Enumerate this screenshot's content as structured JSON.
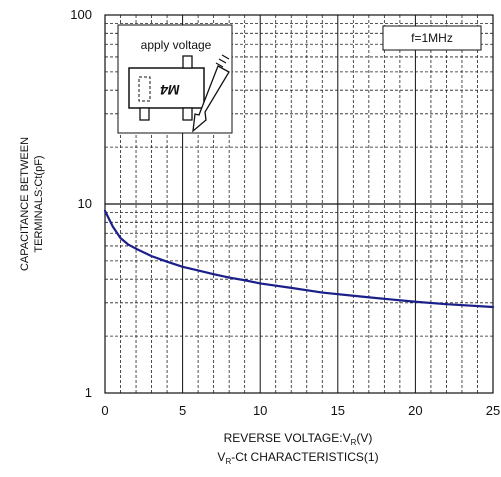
{
  "chart_data": {
    "type": "line",
    "title": "VR-Ct CHARACTERISTICS(1)",
    "title_parts": {
      "prefix": "V",
      "sub": "R",
      "suffix": "-Ct CHARACTERISTICS(1)"
    },
    "xlabel": "REVERSE VOLTAGE:VR(V)",
    "xlabel_parts": {
      "prefix": "REVERSE VOLTAGE:V",
      "sub": "R",
      "suffix": "(V)"
    },
    "ylabel_lines": [
      "CAPACITANCE BETWEEN",
      "TERMINALS:Ct(pF)"
    ],
    "xlim": [
      0,
      25
    ],
    "ylim": [
      1,
      100
    ],
    "y_scale": "log",
    "grid": true,
    "x_ticks": [
      "0",
      "5",
      "10",
      "15",
      "20",
      "25"
    ],
    "y_ticks": [
      "1",
      "10",
      "100"
    ],
    "annotation_box": "f=1MHz",
    "inset": {
      "label": "apply voltage",
      "marking": "M4"
    },
    "series": [
      {
        "x": [
          0,
          0.5,
          1,
          1.5,
          2,
          3,
          4,
          5,
          6,
          7,
          8,
          9,
          10,
          12,
          14,
          16,
          18,
          20,
          22,
          25
        ],
        "values": [
          9.2,
          7.6,
          6.6,
          6.1,
          5.8,
          5.3,
          4.95,
          4.65,
          4.45,
          4.25,
          4.08,
          3.95,
          3.8,
          3.6,
          3.4,
          3.27,
          3.15,
          3.04,
          2.95,
          2.85
        ],
        "color": "#1a1f8a"
      }
    ]
  }
}
